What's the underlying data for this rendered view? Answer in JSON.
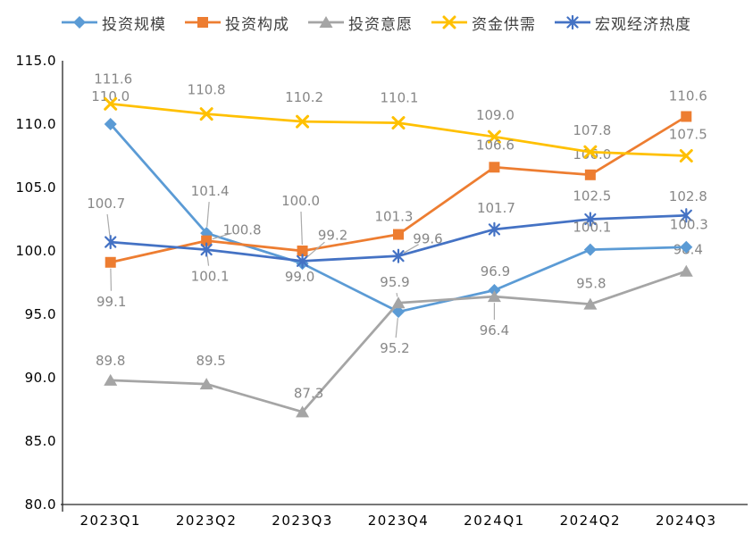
{
  "chart_data": {
    "type": "line",
    "title": "",
    "xlabel": "",
    "ylabel": "",
    "grid": false,
    "legend_position": "top",
    "ylim": [
      80,
      115
    ],
    "y_tick_values": [
      115,
      110,
      105,
      100,
      95,
      90,
      85,
      80
    ],
    "y_tick_labels": [
      "115.0",
      "110.0",
      "105.0",
      "100.0",
      "95.0",
      "90.0",
      "85.0",
      "80.0"
    ],
    "categories": [
      "2023Q1",
      "2023Q2",
      "2023Q3",
      "2023Q4",
      "2024Q1",
      "2024Q2",
      "2024Q3"
    ],
    "colors": {
      "axis": "#262626",
      "tick_label": "#000000",
      "data_label": "#878787",
      "leader": "#ababab",
      "legend_text": "#404040",
      "background": "#ffffff"
    },
    "series": [
      {
        "name": "投资规模",
        "color": "#5B9BD5",
        "marker": "diamond",
        "values": [
          110.0,
          101.4,
          99.0,
          95.2,
          96.9,
          100.1,
          100.3
        ],
        "labels": [
          {
            "dx": 0,
            "dy": -31,
            "behind": true
          },
          {
            "dx": 4,
            "dy": -47,
            "leader": true
          },
          {
            "dx": -3,
            "dy": 15
          },
          {
            "dx": -4,
            "dy": 41,
            "leader": true
          },
          {
            "dx": 1,
            "dy": -21
          },
          {
            "dx": 2,
            "dy": -25
          },
          {
            "dx": 3,
            "dy": -25
          }
        ]
      },
      {
        "name": "投资构成",
        "color": "#ED7D31",
        "marker": "square",
        "values": [
          99.1,
          100.8,
          100.0,
          101.3,
          106.6,
          106.0,
          110.6
        ],
        "labels": [
          {
            "dx": 1,
            "dy": 44,
            "leader": true
          },
          {
            "dx": 40,
            "dy": -12,
            "leader": true
          },
          {
            "dx": -2,
            "dy": -56,
            "leader": true
          },
          {
            "dx": -5,
            "dy": -20
          },
          {
            "dx": 1,
            "dy": -25
          },
          {
            "dx": 2,
            "dy": -23,
            "behind": true
          },
          {
            "dx": 2,
            "dy": -23
          }
        ]
      },
      {
        "name": "投资意愿",
        "color": "#A5A5A5",
        "marker": "triangle",
        "values": [
          89.8,
          89.5,
          87.3,
          95.9,
          96.4,
          95.8,
          98.4
        ],
        "labels": [
          {
            "dx": 0,
            "dy": -22
          },
          {
            "dx": 5,
            "dy": -26
          },
          {
            "dx": 7,
            "dy": -21
          },
          {
            "dx": -4,
            "dy": -23,
            "leader": true
          },
          {
            "dx": 0,
            "dy": 38,
            "leader": true
          },
          {
            "dx": 1,
            "dy": -23
          },
          {
            "dx": 2,
            "dy": -24,
            "behind": true
          }
        ]
      },
      {
        "name": "资金供需",
        "color": "#FFC000",
        "marker": "x",
        "values": [
          111.6,
          110.8,
          110.2,
          110.1,
          109.0,
          107.8,
          107.5
        ],
        "labels": [
          {
            "dx": 3,
            "dy": -28
          },
          {
            "dx": 0,
            "dy": -27
          },
          {
            "dx": 2,
            "dy": -27
          },
          {
            "dx": 1,
            "dy": -28
          },
          {
            "dx": 1,
            "dy": -24
          },
          {
            "dx": 2,
            "dy": -24
          },
          {
            "dx": 2,
            "dy": -24
          }
        ]
      },
      {
        "name": "宏观经济热度",
        "color": "#4472C4",
        "marker": "star",
        "values": [
          100.7,
          100.1,
          99.2,
          99.6,
          101.7,
          102.5,
          102.8
        ],
        "labels": [
          {
            "dx": -5,
            "dy": -43,
            "leader": true
          },
          {
            "dx": 4,
            "dy": 30,
            "leader": true
          },
          {
            "dx": 34,
            "dy": -29,
            "leader": true
          },
          {
            "dx": 33,
            "dy": -19,
            "leader": true
          },
          {
            "dx": 2,
            "dy": -24
          },
          {
            "dx": 2,
            "dy": -26
          },
          {
            "dx": 2,
            "dy": -21
          }
        ]
      }
    ]
  }
}
